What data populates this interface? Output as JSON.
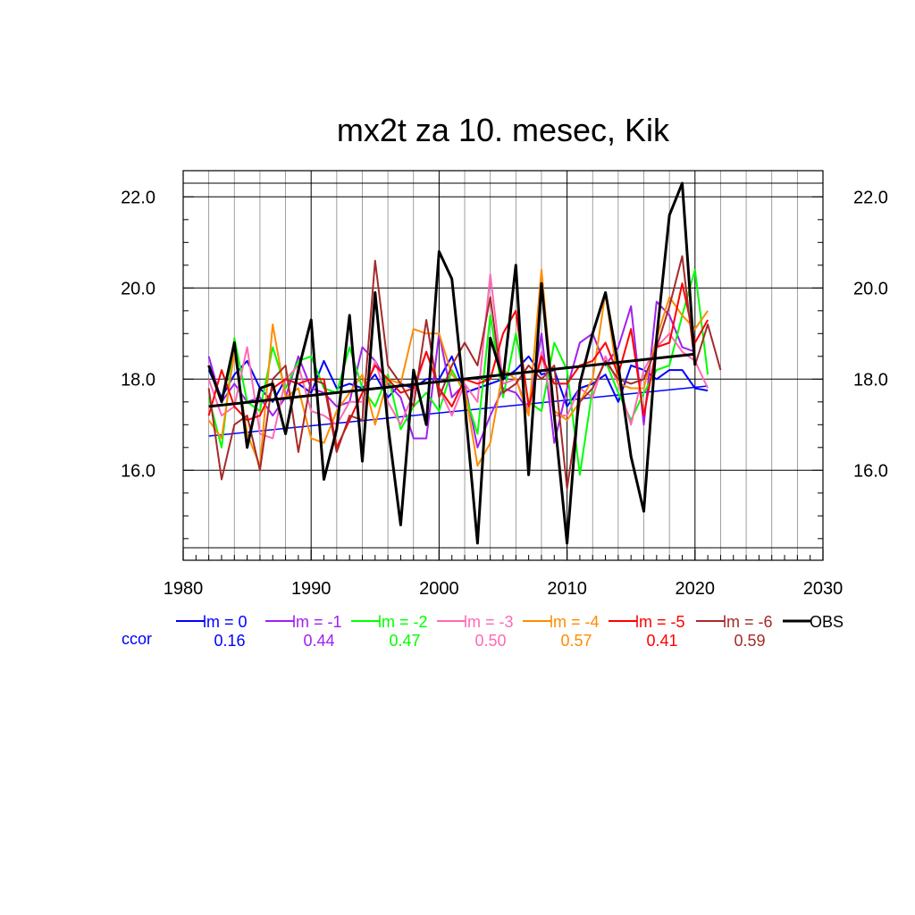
{
  "chart_data": {
    "type": "line",
    "title": "mx2t za 10. mesec, Kik",
    "xlabel": "",
    "ylabel": "",
    "xlim": [
      1980,
      2030
    ],
    "ylim": [
      14.3,
      22.3
    ],
    "x_ticks": [
      "1980",
      "1990",
      "2000",
      "2010",
      "2020",
      "2030"
    ],
    "y_ticks": [
      "16.0",
      "18.0",
      "20.0",
      "22.0"
    ],
    "grid": true,
    "legend_position": "bottom",
    "ccor_label": "ccor",
    "x": [
      1982,
      1983,
      1984,
      1985,
      1986,
      1987,
      1988,
      1989,
      1990,
      1991,
      1992,
      1993,
      1994,
      1995,
      1996,
      1997,
      1998,
      1999,
      2000,
      2001,
      2002,
      2003,
      2004,
      2005,
      2006,
      2007,
      2008,
      2009,
      2010,
      2011,
      2012,
      2013,
      2014,
      2015,
      2016,
      2017,
      2018,
      2019,
      2020,
      2021,
      2022
    ],
    "series": [
      {
        "name": "lm = 0",
        "color": "#0000ff",
        "ccor": "0.16",
        "values": [
          18.2,
          17.6,
          18.1,
          18.4,
          17.8,
          17.5,
          18.0,
          17.9,
          17.7,
          18.4,
          17.8,
          17.9,
          17.8,
          18.1,
          17.6,
          17.9,
          17.8,
          18.0,
          18.0,
          18.5,
          17.7,
          17.8,
          17.9,
          18.0,
          18.2,
          18.5,
          18.1,
          18.2,
          17.4,
          17.8,
          17.9,
          18.1,
          17.5,
          18.3,
          18.2,
          18.0,
          18.2,
          18.2,
          17.8,
          17.75,
          null
        ],
        "trend": [
          [
            1982,
            16.75
          ],
          [
            2021,
            17.85
          ]
        ]
      },
      {
        "name": "lm = -1",
        "color": "#a020f0",
        "ccor": "0.44",
        "values": [
          18.5,
          17.5,
          17.9,
          17.5,
          17.6,
          17.2,
          17.6,
          18.5,
          17.8,
          17.7,
          17.4,
          17.5,
          18.7,
          18.4,
          17.9,
          17.6,
          16.7,
          16.7,
          19.0,
          17.6,
          17.9,
          16.5,
          17.2,
          17.8,
          17.7,
          17.3,
          19.0,
          16.6,
          17.8,
          18.8,
          19.0,
          18.3,
          18.7,
          19.6,
          17.0,
          19.7,
          19.4,
          18.7,
          18.6,
          null,
          null
        ]
      },
      {
        "name": "lm = -2",
        "color": "#00ff00",
        "ccor": "0.47",
        "values": [
          17.6,
          16.5,
          18.9,
          17.5,
          17.3,
          18.7,
          17.8,
          18.4,
          18.5,
          17.8,
          17.7,
          18.7,
          17.8,
          17.4,
          18.1,
          16.9,
          17.4,
          17.7,
          17.3,
          18.2,
          17.7,
          16.8,
          19.4,
          17.6,
          19.0,
          17.5,
          17.3,
          18.8,
          18.2,
          15.9,
          17.8,
          18.4,
          17.7,
          17.1,
          17.7,
          18.2,
          18.3,
          19.4,
          20.4,
          18.1,
          null
        ]
      },
      {
        "name": "lm = -3",
        "color": "#ff69b4",
        "ccor": "0.50",
        "values": [
          18.0,
          17.2,
          17.4,
          18.7,
          16.8,
          16.7,
          18.0,
          18.3,
          17.3,
          17.2,
          17.0,
          17.5,
          17.5,
          18.4,
          17.5,
          17.0,
          17.7,
          18.6,
          17.8,
          17.2,
          17.9,
          17.5,
          20.3,
          17.9,
          18.0,
          17.3,
          18.6,
          17.2,
          17.2,
          17.8,
          17.6,
          18.5,
          17.9,
          17.0,
          18.2,
          18.7,
          19.0,
          18.6,
          18.4,
          17.8,
          null
        ]
      },
      {
        "name": "lm = -4",
        "color": "#ff8c00",
        "ccor": "0.57",
        "values": [
          17.1,
          16.7,
          18.6,
          16.8,
          16.1,
          19.2,
          17.6,
          17.8,
          16.7,
          16.6,
          17.3,
          17.7,
          18.1,
          17.0,
          18.0,
          17.9,
          19.1,
          19.0,
          19.0,
          18.1,
          17.8,
          16.1,
          16.6,
          18.2,
          18.0,
          17.2,
          20.4,
          17.3,
          17.1,
          17.5,
          18.0,
          19.9,
          17.9,
          17.8,
          17.8,
          18.9,
          19.8,
          19.4,
          19.1,
          19.5,
          null
        ]
      },
      {
        "name": "lm = -5",
        "color": "#ff0000",
        "ccor": "0.41",
        "values": [
          17.2,
          18.2,
          17.4,
          17.1,
          17.2,
          17.8,
          18.0,
          17.9,
          18.0,
          18.0,
          16.5,
          17.1,
          17.7,
          18.3,
          18.0,
          17.7,
          17.8,
          18.6,
          17.8,
          17.4,
          18.0,
          17.9,
          18.0,
          19.0,
          19.5,
          17.4,
          18.5,
          17.9,
          17.9,
          18.3,
          18.4,
          18.8,
          18.1,
          19.1,
          17.2,
          18.7,
          18.8,
          20.1,
          18.8,
          19.3,
          null
        ]
      },
      {
        "name": "lm = -6",
        "color": "#a52a2a",
        "ccor": "0.59",
        "values": [
          17.8,
          15.8,
          17.0,
          17.2,
          16.0,
          18.0,
          18.3,
          16.4,
          18.0,
          17.9,
          16.4,
          17.2,
          17.1,
          20.6,
          18.3,
          17.9,
          17.4,
          19.3,
          17.6,
          18.3,
          18.8,
          18.3,
          19.8,
          17.7,
          17.9,
          18.3,
          18.0,
          18.3,
          15.6,
          17.5,
          17.8,
          18.4,
          18.0,
          17.9,
          18.0,
          18.7,
          19.6,
          20.7,
          18.3,
          19.2,
          18.2
        ]
      },
      {
        "name": "OBS",
        "color": "#000000",
        "ccor": "",
        "values": [
          18.3,
          17.5,
          18.8,
          16.5,
          17.8,
          17.9,
          16.8,
          18.2,
          19.3,
          15.8,
          16.9,
          19.4,
          16.2,
          19.9,
          17.0,
          14.8,
          18.2,
          17.0,
          20.8,
          20.2,
          17.5,
          14.4,
          18.9,
          18.0,
          20.5,
          15.9,
          20.1,
          17.2,
          14.4,
          17.9,
          19.0,
          19.9,
          18.3,
          16.3,
          15.1,
          18.9,
          21.6,
          22.3,
          18.3,
          null,
          null
        ],
        "trend": [
          [
            1982,
            17.4
          ],
          [
            2020,
            18.55
          ]
        ]
      }
    ]
  }
}
